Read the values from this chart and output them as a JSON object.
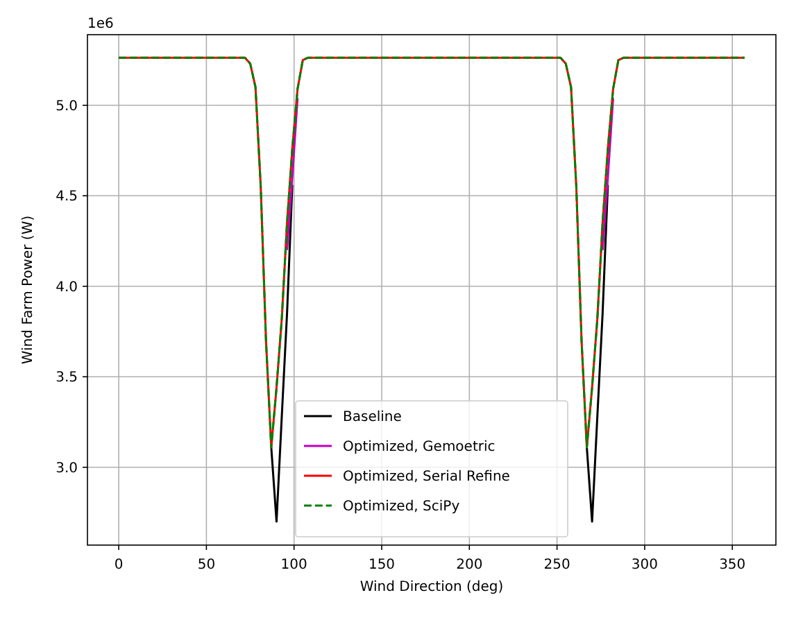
{
  "chart_data": {
    "type": "line",
    "xlabel": "Wind Direction (deg)",
    "ylabel": "Wind Farm Power (W)",
    "annotations": [
      "1e6"
    ],
    "x": [
      0,
      72,
      75,
      78,
      81,
      84,
      87,
      90,
      93,
      96,
      99,
      102,
      105,
      108,
      252,
      255,
      258,
      261,
      264,
      267,
      270,
      273,
      276,
      279,
      282,
      285,
      288,
      357
    ],
    "series": [
      {
        "name": "Baseline",
        "color": "#000000",
        "values": [
          null,
          null,
          null,
          null,
          null,
          null,
          3.11,
          2.7,
          3.28,
          3.85,
          4.56,
          null,
          null,
          null,
          null,
          null,
          null,
          null,
          null,
          3.11,
          2.7,
          3.28,
          3.85,
          4.56,
          null,
          null,
          null,
          null
        ]
      },
      {
        "name": "Optimized, Gemoetric",
        "color": "#bf00bf",
        "values": [
          null,
          null,
          null,
          null,
          null,
          null,
          null,
          null,
          null,
          4.2,
          4.6,
          5.04,
          null,
          null,
          null,
          null,
          null,
          null,
          null,
          null,
          null,
          null,
          4.2,
          4.6,
          5.04,
          null,
          null,
          null
        ]
      },
      {
        "name": "Optimized, Serial Refine",
        "color": "#ff0000",
        "values": [
          5.263,
          5.263,
          5.23,
          5.1,
          4.55,
          3.7,
          3.11,
          3.44,
          3.82,
          4.35,
          4.76,
          5.09,
          5.25,
          5.263,
          5.263,
          5.23,
          5.1,
          4.55,
          3.7,
          3.11,
          3.44,
          3.82,
          4.35,
          4.76,
          5.09,
          5.25,
          5.263,
          5.263
        ]
      },
      {
        "name": "Optimized, SciPy",
        "color": "#008000",
        "line_style": "dashed",
        "values": [
          5.263,
          5.263,
          5.23,
          5.1,
          4.55,
          3.7,
          3.11,
          3.44,
          3.82,
          4.35,
          4.76,
          5.09,
          5.25,
          5.263,
          5.263,
          5.23,
          5.1,
          4.55,
          3.7,
          3.11,
          3.44,
          3.82,
          4.35,
          4.76,
          5.09,
          5.25,
          5.263,
          5.263
        ]
      }
    ],
    "xlim": [
      -17.85,
      374.85
    ],
    "xticks": [
      0,
      50,
      100,
      150,
      200,
      250,
      300,
      350
    ],
    "ylim": [
      2.57,
      5.39
    ],
    "yticks": [
      {
        "value": 3,
        "label": "3.0"
      },
      3.5,
      {
        "value": 4,
        "label": "4.0"
      },
      4.5,
      {
        "value": 5,
        "label": "5.0"
      }
    ],
    "grid": true,
    "legend": "bottom"
  }
}
